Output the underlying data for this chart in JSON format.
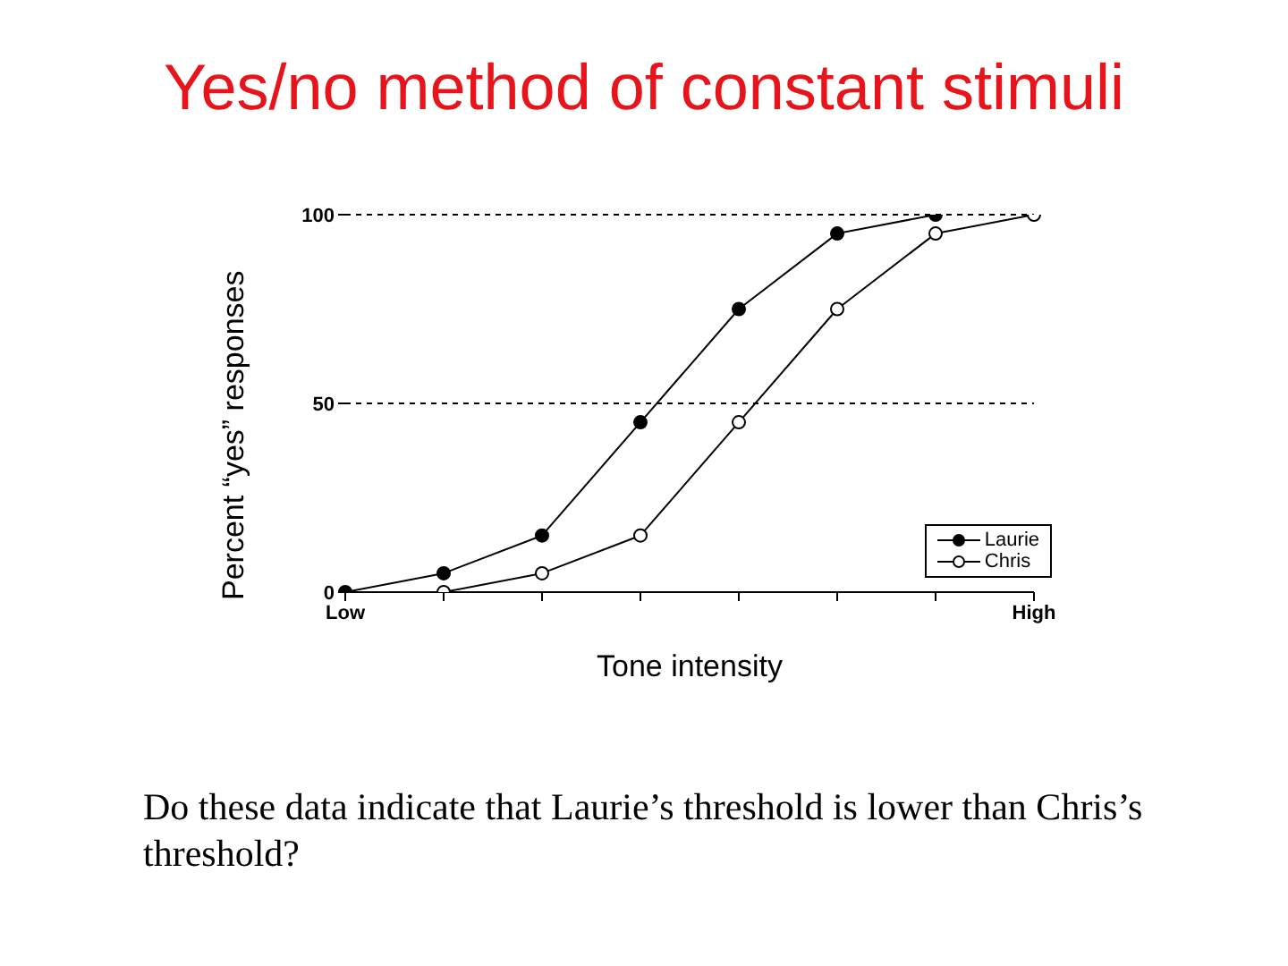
{
  "chart_data": {
    "type": "line",
    "title": "Yes/no method of constant stimuli",
    "xlabel": "Tone intensity",
    "ylabel": "Percent “yes” responses",
    "categories": [
      "Low",
      null,
      null,
      null,
      null,
      null,
      null,
      "High"
    ],
    "series": [
      {
        "name": "Laurie",
        "color": "#000000",
        "values": [
          0,
          5,
          15,
          45,
          75,
          95,
          100,
          null
        ]
      },
      {
        "name": "Chris",
        "color": "#000000",
        "values": [
          null,
          0,
          5,
          15,
          45,
          75,
          95,
          100
        ]
      }
    ],
    "ylim": [
      0,
      100
    ],
    "yticks": [
      0,
      50,
      100
    ],
    "grid": "y",
    "legend": "bottom right",
    "marker": "circle",
    "line_style": "solid",
    "annotations": [
      "Do these data indicate that Laurie’s threshold is lower than Chris’s threshold?"
    ]
  }
}
